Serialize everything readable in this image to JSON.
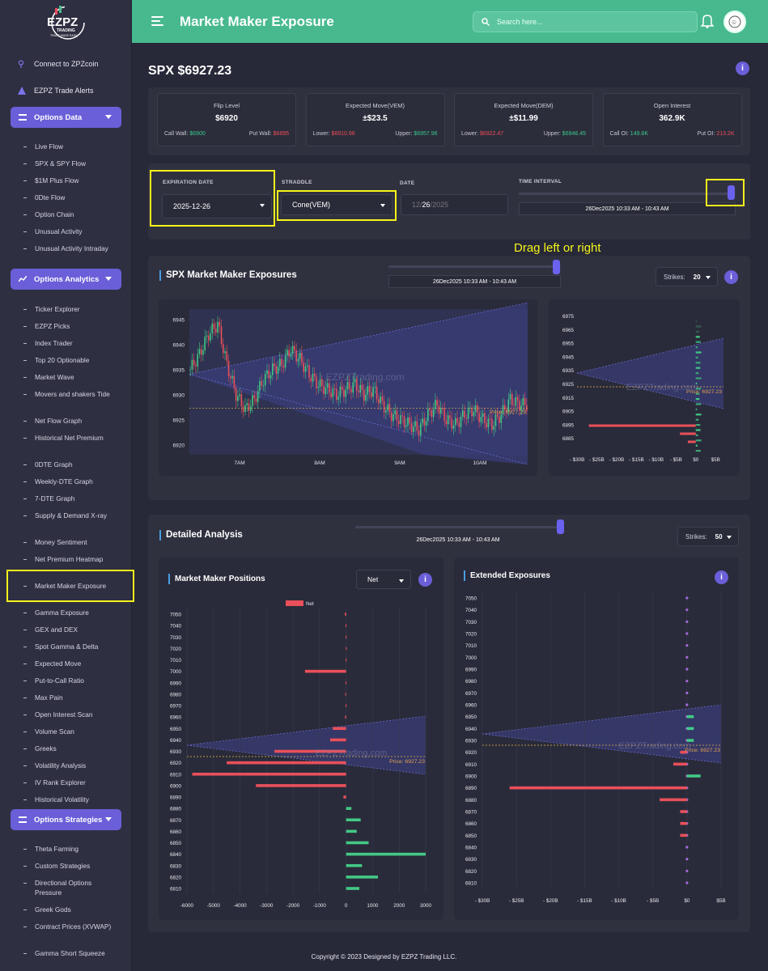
{
  "brand": {
    "name": "EZPZ",
    "sub": "TRADING",
    "tagline": "TRADE MADE EASY"
  },
  "header": {
    "title": "Market Maker Exposure",
    "search_placeholder": "Search here..."
  },
  "sidebar": {
    "top_links": [
      "Connect to ZPZcoin",
      "EZPZ Trade Alerts"
    ],
    "sections": [
      {
        "label": "Options Data",
        "items": [
          "Live Flow",
          "SPX & SPY Flow",
          "$1M Plus Flow",
          "0Dte Flow",
          "Option Chain",
          "Unusual Activity",
          "Unusual Activity Intraday"
        ]
      },
      {
        "label": "Options Analytics",
        "items": [
          "Ticker Explorer",
          "EZPZ Picks",
          "Index Trader",
          "Top 20 Optionable",
          "Market Wave",
          "Movers and shakers Tide",
          "Net Flow Graph",
          "Historical Net Premium",
          "0DTE Graph",
          "Weekly-DTE Graph",
          "7-DTE Graph",
          "Supply & Demand X-ray",
          "Money Sentiment",
          "Net Premium Heatmap",
          "Market Maker Exposure",
          "Gamma Exposure",
          "GEX and DEX",
          "Spot Gamma & Delta",
          "Expected Move",
          "Put-to-Call Ratio",
          "Max Pain",
          "Open Interest Scan",
          "Volume Scan",
          "Greeks",
          "Volatility Analysis",
          "IV Rank Explorer",
          "Historical Volatility"
        ]
      },
      {
        "label": "Options Strategies",
        "items": [
          "Theta Farming",
          "Custom Strategies",
          "Directional Options Pressure",
          "Greek Gods",
          "Contract Prices (XVWAP)",
          "Gamma Short Squeeze"
        ]
      }
    ],
    "active": "Market Maker Exposure"
  },
  "main": {
    "ticker": "SPX $6927.23",
    "stats": [
      {
        "label": "Flip Level",
        "value": "$6920",
        "left_label": "Call Wall:",
        "left_value": "$6900",
        "right_label": "Put Wall:",
        "right_value": "$6895"
      },
      {
        "label": "Expected Move(VEM)",
        "value": "±$23.5",
        "left_label": "Lower:",
        "left_value": "$6910.96",
        "right_label": "Upper:",
        "right_value": "$6957.96"
      },
      {
        "label": "Expected Move(DEM)",
        "value": "±$11.99",
        "left_label": "Lower:",
        "left_value": "$6922.47",
        "right_label": "Upper:",
        "right_value": "$6946.45"
      },
      {
        "label": "Open Interest",
        "value": "362.9K",
        "left_label": "Call OI:",
        "left_value": "149.8K",
        "right_label": "Put OI:",
        "right_value": "213.2K"
      }
    ],
    "controls": {
      "expiration_label": "EXPIRATION DATE",
      "expiration_value": "2025-12-26",
      "straddle_label": "STRADDLE",
      "straddle_value": "Cone(VEM)",
      "date_label": "DATE",
      "date_mm": "12",
      "date_dd": "26",
      "date_yyyy": "2025",
      "interval_label": "TIME INTERVAL",
      "interval_value": "26Dec2025 10:33 AM - 10:43 AM"
    },
    "drag_note": "Drag left or right",
    "panel1": {
      "title": "SPX Market Maker Exposures",
      "interval": "26Dec2025 10:33 AM - 10:43 AM",
      "strikes_label": "Strikes:",
      "strikes_value": "20"
    },
    "panel2": {
      "title": "Detailed Analysis",
      "interval": "26Dec2025 10:33 AM - 10:43 AM",
      "strikes_label": "Strikes:",
      "strikes_value": "50",
      "mmp_title": "Market Maker Positions",
      "mmp_select": "Net",
      "ext_title": "Extended Exposures"
    },
    "watermark": "EZPZTrading.com",
    "price_label": "Price: 6927.23",
    "footer": "Copyright © 2023 Designed by EZPZ Trading LLC."
  },
  "chart_data": [
    {
      "type": "candlestick",
      "name": "SPX intraday",
      "x_ticks": [
        "7AM",
        "8AM",
        "9AM",
        "10AM"
      ],
      "y_ticks": [
        6920,
        6925,
        6930,
        6935,
        6940,
        6945
      ],
      "ylim": [
        6918,
        6947
      ],
      "price_line": 6927.23,
      "ohlc_approx": [
        6935,
        6938,
        6942,
        6944,
        6936,
        6930,
        6927,
        6929,
        6933,
        6935,
        6936,
        6939,
        6937,
        6934,
        6932,
        6931,
        6930,
        6931,
        6932,
        6930,
        6931,
        6928,
        6926,
        6925,
        6924,
        6923,
        6926,
        6928,
        6925,
        6924,
        6926,
        6927,
        6925,
        6924,
        6926,
        6929,
        6928
      ]
    },
    {
      "type": "bar",
      "orientation": "horizontal",
      "name": "SPX Market Maker Exposures",
      "y_ticks": [
        6885,
        6895,
        6905,
        6915,
        6925,
        6935,
        6945,
        6955,
        6965,
        6975
      ],
      "x_ticks": [
        "- $30B",
        "- $25B",
        "- $20B",
        "- $15B",
        "- $10B",
        "- $5B",
        "$0",
        "$5B"
      ],
      "unit": "$B",
      "strikes": [
        6895,
        6890,
        6885
      ],
      "values": [
        -27,
        -4,
        -2
      ]
    },
    {
      "type": "bar",
      "orientation": "horizontal",
      "name": "Market Maker Positions",
      "series": [
        {
          "name": "Net"
        }
      ],
      "x_ticks": [
        -6000,
        -5000,
        -4000,
        -3000,
        -2000,
        -1000,
        0,
        1000,
        2000,
        3000
      ],
      "strikes": [
        7050,
        7040,
        7030,
        7020,
        7010,
        7000,
        6990,
        6980,
        6970,
        6960,
        6950,
        6940,
        6930,
        6920,
        6910,
        6900,
        6890,
        6880,
        6870,
        6860,
        6850,
        6840,
        6830,
        6820,
        6810
      ],
      "values": [
        -50,
        -20,
        -15,
        -10,
        -15,
        -1550,
        -20,
        -30,
        -15,
        -40,
        -500,
        -600,
        -2700,
        -4500,
        -5800,
        -3400,
        -100,
        200,
        550,
        400,
        850,
        3000,
        600,
        1200,
        500
      ]
    },
    {
      "type": "bar",
      "orientation": "horizontal",
      "name": "Extended Exposures",
      "x_ticks": [
        "- $30B",
        "- $25B",
        "- $20B",
        "- $15B",
        "- $10B",
        "- $5B",
        "$0",
        "$5B"
      ],
      "strikes": [
        7050,
        7040,
        7030,
        7020,
        7010,
        7000,
        6990,
        6980,
        6970,
        6960,
        6950,
        6940,
        6930,
        6920,
        6910,
        6900,
        6890,
        6880,
        6870,
        6860,
        6850,
        6840,
        6830,
        6820,
        6810
      ],
      "values": [
        0,
        0,
        0,
        0,
        0,
        0,
        0,
        0,
        0,
        0,
        1,
        1,
        1,
        -1,
        -2,
        2,
        -26,
        -4,
        -1,
        -1,
        -1,
        0,
        0,
        0,
        0
      ]
    }
  ]
}
